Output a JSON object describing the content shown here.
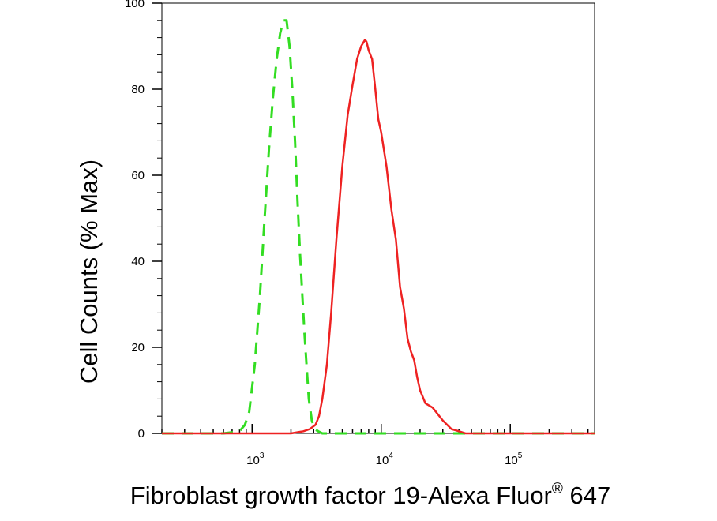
{
  "chart_data": {
    "type": "line",
    "xlabel": "Fibroblast growth factor 19-Alexa Fluor",
    "xlabel_superscript": "®",
    "xlabel_suffix": " 647",
    "ylabel": "Cell Counts (% Max)",
    "x_scale": "log",
    "xlim": [
      200,
      450000
    ],
    "ylim": [
      0,
      100
    ],
    "x_ticks": [
      {
        "base": "10",
        "exp": "3",
        "value": 1000
      },
      {
        "base": "10",
        "exp": "4",
        "value": 10000
      },
      {
        "base": "10",
        "exp": "5",
        "value": 100000
      }
    ],
    "y_ticks": [
      0,
      20,
      40,
      60,
      80,
      100
    ],
    "grid": false,
    "series": [
      {
        "style": "dashed",
        "color": "#33dd22",
        "x": [
          200,
          600,
          800,
          880,
          950,
          1050,
          1150,
          1250,
          1350,
          1450,
          1550,
          1650,
          1750,
          1850,
          1950,
          2050,
          2150,
          2250,
          2350,
          2450,
          2550,
          2650,
          2750,
          2900,
          3050,
          3250,
          3500,
          4000,
          6000,
          10000,
          20000,
          100000,
          450000
        ],
        "y": [
          0,
          0,
          0.5,
          2,
          5,
          16,
          32,
          50,
          66,
          78,
          87,
          93,
          96,
          96,
          90,
          80,
          68,
          54,
          42,
          32,
          23,
          15,
          8,
          3,
          1,
          0.5,
          0,
          0,
          0,
          0,
          0,
          0,
          0
        ]
      },
      {
        "style": "solid",
        "color": "#ee2222",
        "x": [
          200,
          1000,
          2000,
          2500,
          2800,
          3100,
          3300,
          3500,
          3800,
          4100,
          4500,
          5000,
          5500,
          6000,
          6500,
          7000,
          7500,
          7700,
          8000,
          8500,
          9000,
          9500,
          10000,
          11000,
          12000,
          13000,
          14000,
          15000,
          16000,
          17000,
          18000,
          19000,
          20000,
          22000,
          25000,
          30000,
          35000,
          40000,
          45000,
          100000,
          450000
        ],
        "y": [
          0,
          0,
          0,
          0.5,
          1,
          2,
          4,
          8,
          16,
          28,
          45,
          62,
          74,
          81,
          87,
          90,
          91.5,
          91,
          89,
          87,
          80,
          73,
          70,
          62,
          52,
          45,
          34,
          29,
          22,
          19,
          17,
          13,
          10,
          7,
          6,
          3,
          1,
          0.5,
          0,
          0,
          0
        ]
      }
    ]
  }
}
